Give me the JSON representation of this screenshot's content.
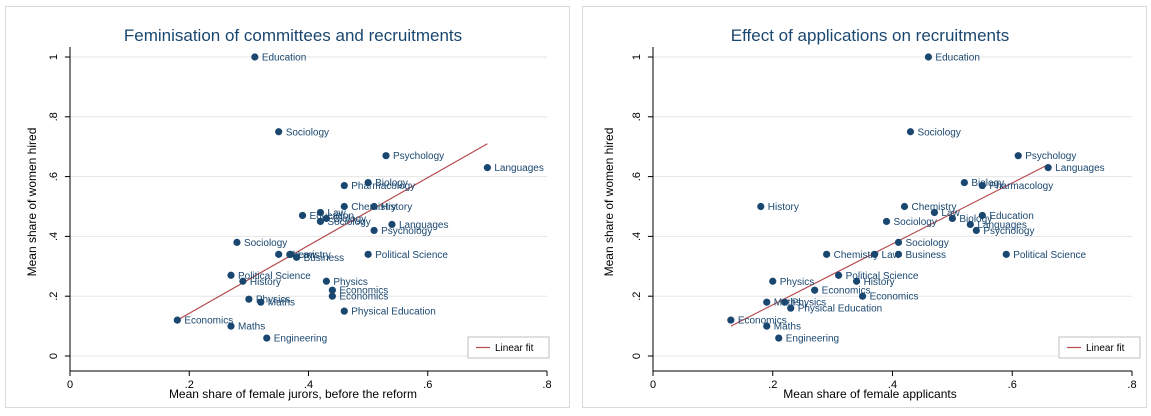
{
  "colors": {
    "point": "#1a476f",
    "fit": "#b5494d",
    "text": "#1a476f",
    "axis": "#000000",
    "grid": "#e6e6e6"
  },
  "chart_data": [
    {
      "type": "scatter",
      "title": "Feminisation of committees and recruitments",
      "xlabel": "Mean share of female jurors, before the reform",
      "ylabel": "Mean share of women hired",
      "xlim": [
        0,
        0.8
      ],
      "ylim": [
        0,
        1
      ],
      "xticks": [
        0,
        0.2,
        0.4,
        0.6,
        0.8
      ],
      "xtick_labels": [
        "0",
        ".2",
        ".4",
        ".6",
        ".8"
      ],
      "yticks": [
        0,
        0.2,
        0.4,
        0.6,
        0.8,
        1
      ],
      "ytick_labels": [
        "0",
        ".2",
        ".4",
        ".6",
        ".8",
        "1"
      ],
      "grid": "horizontal",
      "legend": {
        "position": "bottom-right",
        "label": "Linear fit"
      },
      "fit_line": {
        "x": [
          0.18,
          0.7
        ],
        "y": [
          0.12,
          0.71
        ]
      },
      "points": [
        {
          "label": "Education",
          "x": 0.31,
          "y": 1.0
        },
        {
          "label": "Sociology",
          "x": 0.35,
          "y": 0.75
        },
        {
          "label": "Psychology",
          "x": 0.53,
          "y": 0.67
        },
        {
          "label": "Languages",
          "x": 0.7,
          "y": 0.63
        },
        {
          "label": "Biology",
          "x": 0.5,
          "y": 0.58
        },
        {
          "label": "Pharmacology",
          "x": 0.46,
          "y": 0.57
        },
        {
          "label": "Chemistry",
          "x": 0.46,
          "y": 0.5
        },
        {
          "label": "History",
          "x": 0.51,
          "y": 0.5
        },
        {
          "label": "Education",
          "x": 0.39,
          "y": 0.47
        },
        {
          "label": "Law",
          "x": 0.42,
          "y": 0.48
        },
        {
          "label": "Biology",
          "x": 0.43,
          "y": 0.46
        },
        {
          "label": "Sociology",
          "x": 0.42,
          "y": 0.45
        },
        {
          "label": "Languages",
          "x": 0.54,
          "y": 0.44
        },
        {
          "label": "Psychology",
          "x": 0.51,
          "y": 0.42
        },
        {
          "label": "Sociology",
          "x": 0.28,
          "y": 0.38
        },
        {
          "label": "Chemistry",
          "x": 0.35,
          "y": 0.34
        },
        {
          "label": "Law",
          "x": 0.37,
          "y": 0.34
        },
        {
          "label": "Business",
          "x": 0.38,
          "y": 0.33
        },
        {
          "label": "Political Science",
          "x": 0.5,
          "y": 0.34
        },
        {
          "label": "Political Science",
          "x": 0.27,
          "y": 0.27
        },
        {
          "label": "History",
          "x": 0.29,
          "y": 0.25
        },
        {
          "label": "Physics",
          "x": 0.43,
          "y": 0.25
        },
        {
          "label": "Economics",
          "x": 0.44,
          "y": 0.22
        },
        {
          "label": "Economics",
          "x": 0.44,
          "y": 0.2
        },
        {
          "label": "Physics",
          "x": 0.3,
          "y": 0.19
        },
        {
          "label": "Maths",
          "x": 0.32,
          "y": 0.18
        },
        {
          "label": "Physical Education",
          "x": 0.46,
          "y": 0.15
        },
        {
          "label": "Economics",
          "x": 0.18,
          "y": 0.12
        },
        {
          "label": "Maths",
          "x": 0.27,
          "y": 0.1
        },
        {
          "label": "Engineering",
          "x": 0.33,
          "y": 0.06
        }
      ]
    },
    {
      "type": "scatter",
      "title": "Effect of applications on recruitments",
      "xlabel": "Mean share of female applicants",
      "ylabel": "Mean share of women hired",
      "xlim": [
        0,
        0.8
      ],
      "ylim": [
        0,
        1
      ],
      "xticks": [
        0,
        0.2,
        0.4,
        0.6,
        0.8
      ],
      "xtick_labels": [
        "0",
        ".2",
        ".4",
        ".6",
        ".8"
      ],
      "yticks": [
        0,
        0.2,
        0.4,
        0.6,
        0.8,
        1
      ],
      "ytick_labels": [
        "0",
        ".2",
        ".4",
        ".6",
        ".8",
        "1"
      ],
      "grid": "horizontal",
      "legend": {
        "position": "bottom-right",
        "label": "Linear fit"
      },
      "fit_line": {
        "x": [
          0.13,
          0.66
        ],
        "y": [
          0.1,
          0.64
        ]
      },
      "points": [
        {
          "label": "Education",
          "x": 0.46,
          "y": 1.0
        },
        {
          "label": "Sociology",
          "x": 0.43,
          "y": 0.75
        },
        {
          "label": "Psychology",
          "x": 0.61,
          "y": 0.67
        },
        {
          "label": "Languages",
          "x": 0.66,
          "y": 0.63
        },
        {
          "label": "Biology",
          "x": 0.52,
          "y": 0.58
        },
        {
          "label": "Pharmacology",
          "x": 0.55,
          "y": 0.57
        },
        {
          "label": "History",
          "x": 0.18,
          "y": 0.5
        },
        {
          "label": "Chemistry",
          "x": 0.42,
          "y": 0.5
        },
        {
          "label": "Law",
          "x": 0.47,
          "y": 0.48
        },
        {
          "label": "Biology",
          "x": 0.5,
          "y": 0.46
        },
        {
          "label": "Education",
          "x": 0.55,
          "y": 0.47
        },
        {
          "label": "Sociology",
          "x": 0.39,
          "y": 0.45
        },
        {
          "label": "Languages",
          "x": 0.53,
          "y": 0.44
        },
        {
          "label": "Psychology",
          "x": 0.54,
          "y": 0.42
        },
        {
          "label": "Sociology",
          "x": 0.41,
          "y": 0.38
        },
        {
          "label": "Chemistry",
          "x": 0.29,
          "y": 0.34
        },
        {
          "label": "Law",
          "x": 0.37,
          "y": 0.34
        },
        {
          "label": "Business",
          "x": 0.41,
          "y": 0.34
        },
        {
          "label": "Political Science",
          "x": 0.59,
          "y": 0.34
        },
        {
          "label": "Political Science",
          "x": 0.31,
          "y": 0.27
        },
        {
          "label": "History",
          "x": 0.34,
          "y": 0.25
        },
        {
          "label": "Physics",
          "x": 0.2,
          "y": 0.25
        },
        {
          "label": "Economics",
          "x": 0.27,
          "y": 0.22
        },
        {
          "label": "Economics",
          "x": 0.35,
          "y": 0.2
        },
        {
          "label": "Maths",
          "x": 0.19,
          "y": 0.18
        },
        {
          "label": "Physics",
          "x": 0.22,
          "y": 0.18
        },
        {
          "label": "Physical Education",
          "x": 0.23,
          "y": 0.16
        },
        {
          "label": "Economics",
          "x": 0.13,
          "y": 0.12
        },
        {
          "label": "Maths",
          "x": 0.19,
          "y": 0.1
        },
        {
          "label": "Engineering",
          "x": 0.21,
          "y": 0.06
        }
      ]
    }
  ]
}
